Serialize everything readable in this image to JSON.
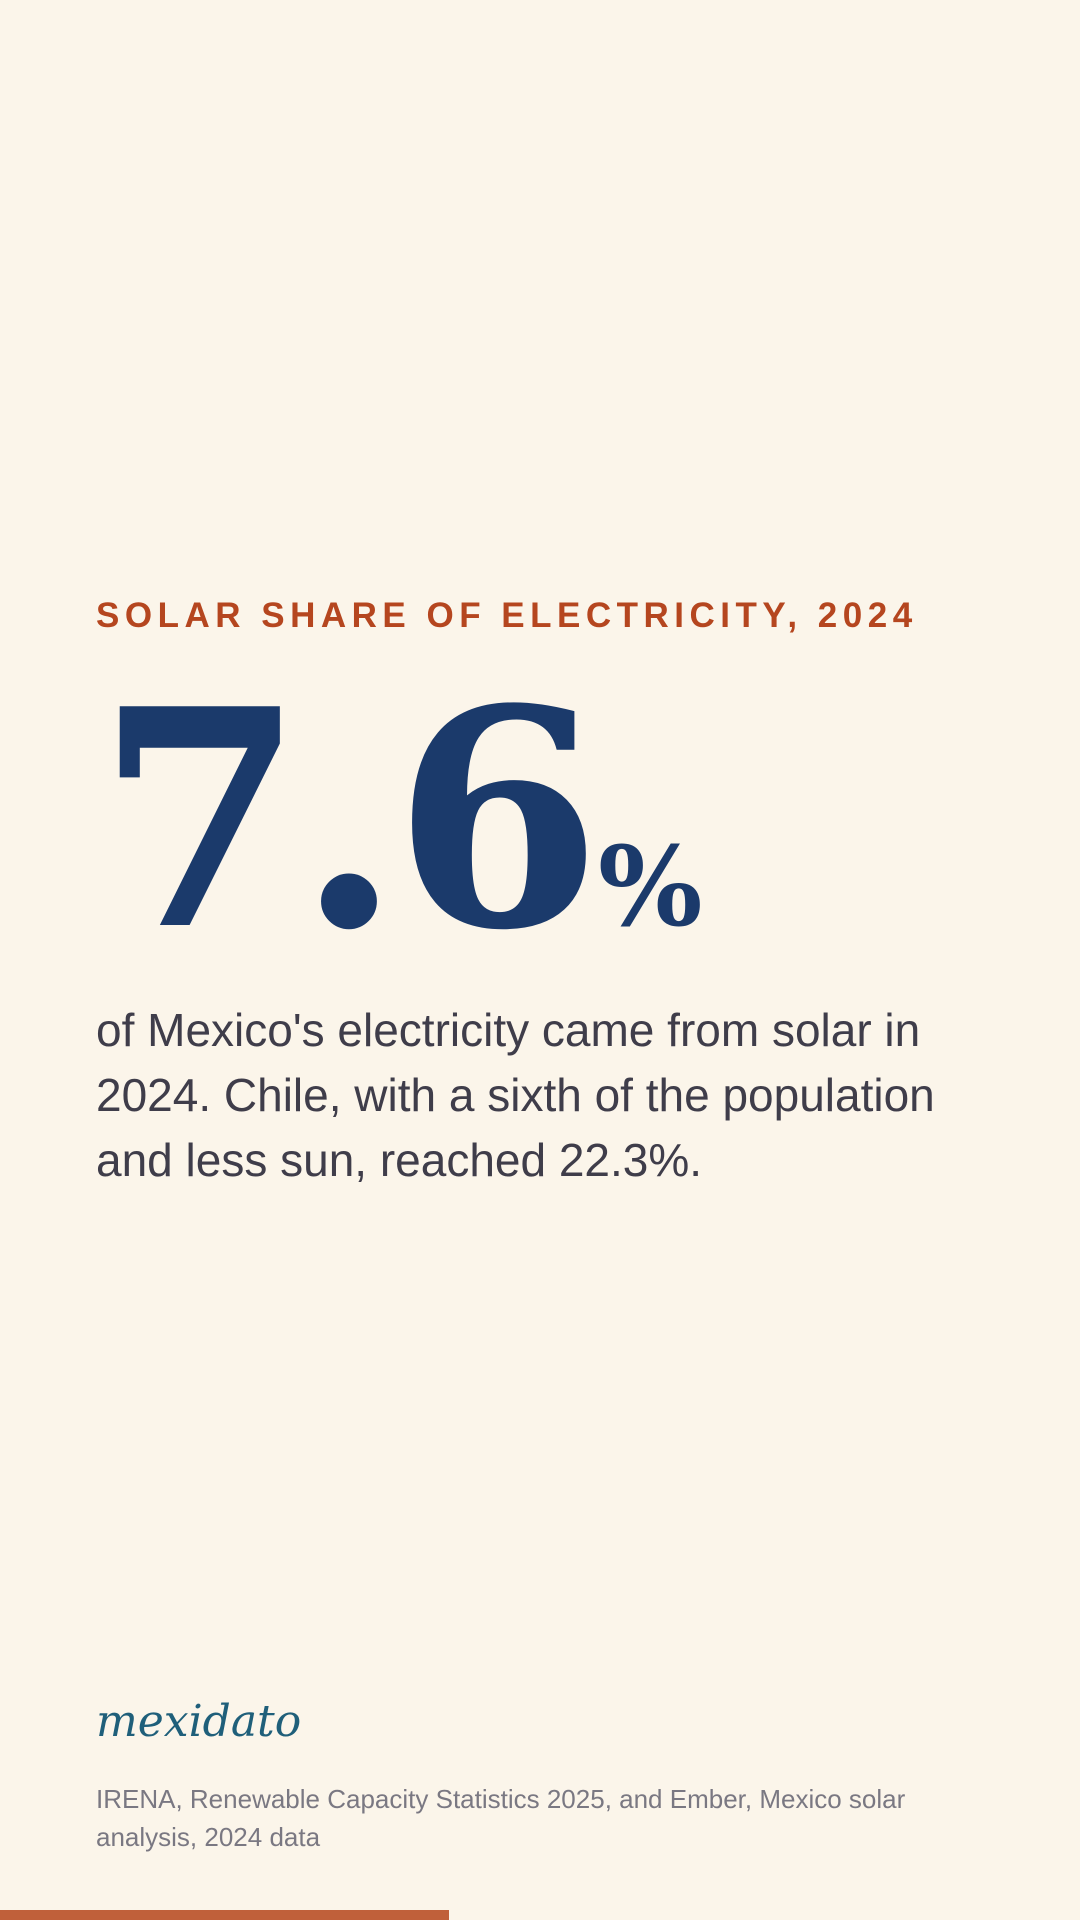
{
  "kicker": "SOLAR SHARE OF ELECTRICITY, 2024",
  "stat": {
    "value": "7.6",
    "unit": "%"
  },
  "body": "of Mexico's electricity came from solar in 2024. Chile, with a sixth of the population and less sun, reached 22.3%.",
  "brand": {
    "logo_text": "mexidato"
  },
  "source": "IRENA, Renewable Capacity Statistics 2025, and Ember, Mexico solar analysis, 2024 data",
  "progress": {
    "fraction": 0.416
  },
  "colors": {
    "background": "#FBF5EA",
    "kicker": "#B5461F",
    "stat": "#1B3A6B",
    "body_text": "#3F3D4A",
    "logo": "#1F5F7A",
    "source_text": "#7A7882",
    "progress_bar": "#C0603A"
  }
}
